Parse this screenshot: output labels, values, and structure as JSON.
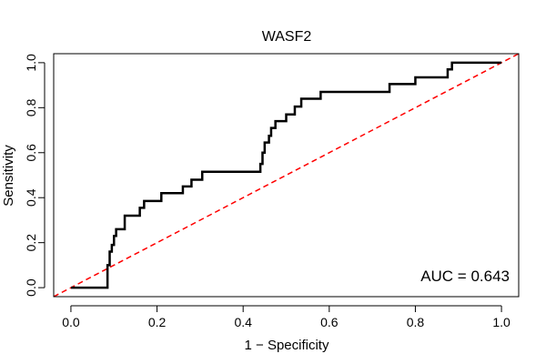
{
  "chart_data": {
    "type": "line",
    "title": "WASF2",
    "xlabel": "1 − Specificity",
    "ylabel": "Sensitivity",
    "xlim": [
      -0.04,
      1.04
    ],
    "ylim": [
      -0.04,
      1.04
    ],
    "xticks": [
      0.0,
      0.2,
      0.4,
      0.6,
      0.8,
      1.0
    ],
    "yticks": [
      0.0,
      0.2,
      0.4,
      0.6,
      0.8,
      1.0
    ],
    "xtick_labels": [
      "0.0",
      "0.2",
      "0.4",
      "0.6",
      "0.8",
      "1.0"
    ],
    "ytick_labels": [
      "0.0",
      "0.2",
      "0.4",
      "0.6",
      "0.8",
      "1.0"
    ],
    "annotation": "AUC = 0.643",
    "series": [
      {
        "name": "ROC curve",
        "color": "#000000",
        "style": "solid",
        "x": [
          0.0,
          0.085,
          0.085,
          0.09,
          0.09,
          0.095,
          0.095,
          0.1,
          0.1,
          0.105,
          0.105,
          0.125,
          0.125,
          0.16,
          0.16,
          0.17,
          0.17,
          0.21,
          0.21,
          0.26,
          0.26,
          0.28,
          0.28,
          0.305,
          0.305,
          0.44,
          0.44,
          0.445,
          0.445,
          0.45,
          0.45,
          0.46,
          0.46,
          0.465,
          0.465,
          0.475,
          0.475,
          0.5,
          0.5,
          0.52,
          0.52,
          0.535,
          0.535,
          0.58,
          0.58,
          0.59,
          0.59,
          0.74,
          0.74,
          0.8,
          0.8,
          0.875,
          0.875,
          0.885,
          0.885,
          1.0
        ],
        "y": [
          0.0,
          0.0,
          0.1,
          0.1,
          0.16,
          0.16,
          0.19,
          0.19,
          0.23,
          0.23,
          0.26,
          0.26,
          0.32,
          0.32,
          0.355,
          0.355,
          0.385,
          0.385,
          0.42,
          0.42,
          0.45,
          0.45,
          0.48,
          0.48,
          0.515,
          0.515,
          0.55,
          0.55,
          0.6,
          0.6,
          0.645,
          0.645,
          0.675,
          0.675,
          0.71,
          0.71,
          0.74,
          0.74,
          0.77,
          0.77,
          0.805,
          0.805,
          0.84,
          0.84,
          0.87,
          0.87,
          0.87,
          0.87,
          0.905,
          0.905,
          0.935,
          0.935,
          0.97,
          0.97,
          1.0,
          1.0
        ]
      },
      {
        "name": "reference diagonal",
        "color": "#ff0000",
        "style": "dashed",
        "x": [
          -0.04,
          1.04
        ],
        "y": [
          -0.04,
          1.04
        ]
      }
    ]
  }
}
